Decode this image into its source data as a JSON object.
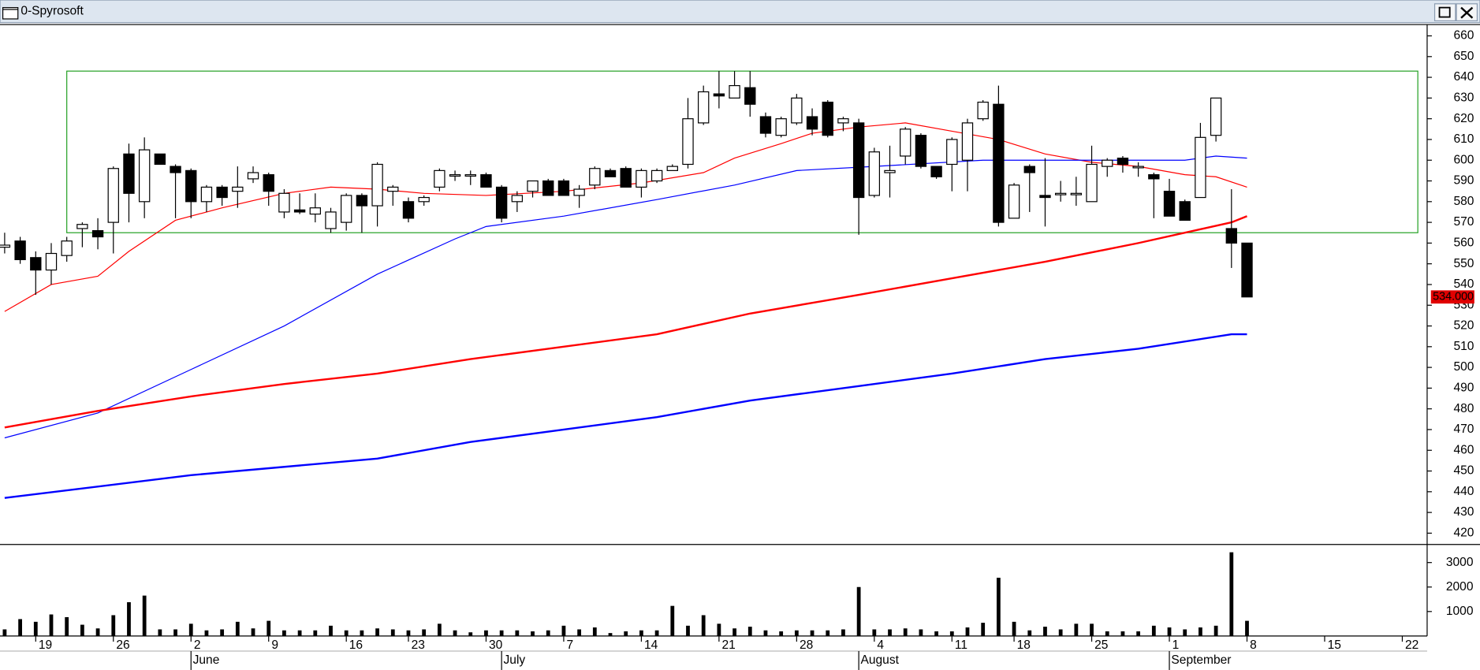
{
  "chart_data": {
    "type": "candlestick",
    "title": "0-Spyrosoft",
    "open": [
      558,
      561,
      553,
      547,
      554,
      567,
      566,
      570,
      603,
      580,
      603,
      597,
      595,
      580,
      587,
      585,
      591,
      593,
      575,
      576,
      574,
      567,
      570,
      583,
      578,
      585,
      580,
      580,
      587,
      593,
      593,
      593,
      587,
      580,
      585,
      590,
      590,
      583,
      588,
      595,
      596,
      587,
      590,
      595,
      598,
      618,
      632,
      630,
      635,
      621,
      612,
      618,
      621,
      628,
      618,
      618,
      583,
      594,
      602,
      612,
      597,
      598,
      600,
      620,
      627,
      572,
      597,
      583,
      584,
      584,
      580,
      597,
      601,
      597,
      593,
      585,
      580,
      582,
      612,
      567,
      560
    ],
    "high": [
      565,
      563,
      556,
      560,
      563,
      570,
      572,
      597,
      608,
      611,
      603,
      598,
      596,
      588,
      588,
      597,
      597,
      594,
      586,
      584,
      584,
      577,
      584,
      584,
      599,
      588,
      582,
      583,
      596,
      595,
      595,
      594,
      588,
      585,
      590,
      591,
      591,
      588,
      597,
      596,
      597,
      596,
      596,
      598,
      630,
      636,
      643,
      643,
      643,
      623,
      621,
      632,
      625,
      629,
      621,
      620,
      606,
      607,
      616,
      613,
      597,
      611,
      620,
      629,
      636,
      589,
      598,
      601,
      590,
      592,
      607,
      601,
      602,
      599,
      594,
      591,
      581,
      618,
      630,
      586,
      560
    ],
    "low": [
      555,
      550,
      535,
      540,
      551,
      558,
      557,
      555,
      570,
      572,
      598,
      572,
      572,
      575,
      578,
      577,
      589,
      578,
      572,
      574,
      570,
      565,
      566,
      565,
      568,
      578,
      570,
      578,
      585,
      590,
      588,
      587,
      570,
      575,
      582,
      583,
      583,
      577,
      586,
      592,
      587,
      582,
      589,
      595,
      596,
      617,
      625,
      630,
      621,
      611,
      611,
      617,
      612,
      611,
      614,
      564,
      582,
      582,
      598,
      596,
      591,
      585,
      585,
      619,
      568,
      572,
      575,
      568,
      580,
      578,
      580,
      592,
      594,
      592,
      572,
      573,
      571,
      582,
      609,
      548,
      534
    ],
    "close": [
      559,
      552,
      547,
      555,
      561,
      569,
      563,
      596,
      584,
      605,
      598,
      594,
      580,
      587,
      582,
      587,
      594,
      585,
      584,
      575,
      577,
      575,
      583,
      578,
      598,
      587,
      572,
      582,
      595,
      593,
      593,
      587,
      572,
      583,
      590,
      583,
      583,
      586,
      596,
      592,
      587,
      595,
      595,
      597,
      620,
      633,
      631,
      636,
      627,
      613,
      620,
      630,
      615,
      612,
      620,
      582,
      604,
      595,
      615,
      597,
      592,
      610,
      618,
      628,
      570,
      588,
      594,
      582,
      584,
      584,
      598,
      600,
      598,
      597,
      591,
      573,
      571,
      611,
      630,
      560,
      534
    ],
    "ylim": [
      415,
      665
    ],
    "yticks": [
      420,
      430,
      440,
      450,
      460,
      470,
      480,
      490,
      500,
      510,
      520,
      530,
      540,
      550,
      560,
      570,
      580,
      590,
      600,
      610,
      620,
      630,
      640,
      650,
      660
    ],
    "xlim": [
      -0.3,
      91.6
    ],
    "xticks": [
      {
        "value": 2,
        "label": "19"
      },
      {
        "value": 7,
        "label": "26"
      },
      {
        "value": 12,
        "label": "2"
      },
      {
        "value": 17,
        "label": "9"
      },
      {
        "value": 22,
        "label": "16"
      },
      {
        "value": 26,
        "label": "23"
      },
      {
        "value": 31,
        "label": "30"
      },
      {
        "value": 36,
        "label": "7"
      },
      {
        "value": 41,
        "label": "14"
      },
      {
        "value": 46,
        "label": "21"
      },
      {
        "value": 51,
        "label": "28"
      },
      {
        "value": 56,
        "label": "4"
      },
      {
        "value": 61,
        "label": "11"
      },
      {
        "value": 65,
        "label": "18"
      },
      {
        "value": 70,
        "label": "25"
      },
      {
        "value": 75,
        "label": "1"
      },
      {
        "value": 80,
        "label": "8"
      },
      {
        "value": 85,
        "label": "15"
      },
      {
        "value": 90,
        "label": "22"
      }
    ],
    "month_ticks": [
      {
        "value": 12,
        "label": "June"
      },
      {
        "value": 32,
        "label": "July"
      },
      {
        "value": 55,
        "label": "August"
      },
      {
        "value": 75,
        "label": "September"
      }
    ],
    "moving_averages": [
      {
        "color": "#ff0000",
        "width": 1,
        "x": [
          0,
          3,
          6,
          8,
          11,
          14,
          18,
          21,
          24,
          27,
          31,
          36,
          41,
          45,
          47,
          50,
          52,
          55,
          58,
          61,
          64,
          67,
          70,
          73,
          76,
          78,
          80
        ],
        "values": [
          527,
          540,
          544,
          556,
          571,
          577,
          584,
          587,
          586,
          584,
          583,
          585,
          589,
          594,
          601,
          608,
          613,
          616,
          618,
          614,
          610,
          603,
          599,
          597,
          593,
          592,
          587
        ]
      },
      {
        "color": "#0000ff",
        "width": 1,
        "x": [
          0,
          6,
          12,
          18,
          24,
          29,
          31,
          36,
          42,
          47,
          51,
          56,
          63,
          70,
          76,
          78,
          80
        ],
        "values": [
          466,
          478,
          499,
          520,
          545,
          562,
          568,
          573,
          581,
          588,
          595,
          597,
          600,
          600,
          600,
          602,
          601
        ]
      },
      {
        "color": "#ff0000",
        "width": 2,
        "x": [
          0,
          6,
          12,
          18,
          24,
          30,
          36,
          42,
          48,
          55,
          61,
          67,
          73,
          79,
          80
        ],
        "values": [
          471,
          479,
          486,
          492,
          497,
          504,
          510,
          516,
          526,
          535,
          543,
          551,
          560,
          570,
          573
        ]
      },
      {
        "color": "#0000ff",
        "width": 2,
        "x": [
          0,
          12,
          24,
          30,
          42,
          48,
          55,
          61,
          67,
          73,
          79,
          80
        ],
        "values": [
          437,
          448,
          456,
          464,
          476,
          484,
          491,
          497,
          504,
          509,
          516,
          516
        ]
      }
    ],
    "range_box": {
      "x": [
        4,
        91
      ],
      "y": [
        565,
        643
      ],
      "color": "#22a022"
    },
    "last_price": {
      "value": 534,
      "label": "534.000"
    },
    "volume": {
      "values": [
        270,
        690,
        580,
        880,
        770,
        460,
        310,
        850,
        1380,
        1650,
        270,
        270,
        500,
        230,
        270,
        580,
        310,
        620,
        230,
        230,
        230,
        420,
        230,
        230,
        310,
        270,
        230,
        270,
        500,
        230,
        150,
        230,
        230,
        230,
        190,
        230,
        420,
        270,
        350,
        120,
        190,
        230,
        230,
        1230,
        420,
        850,
        500,
        310,
        380,
        230,
        190,
        230,
        230,
        230,
        270,
        2000,
        270,
        270,
        310,
        270,
        190,
        190,
        350,
        540,
        2380,
        580,
        230,
        380,
        270,
        500,
        500,
        190,
        190,
        190,
        420,
        350,
        270,
        350,
        420,
        3420,
        620
      ],
      "ylim": [
        0,
        3700
      ],
      "yticks": [
        1000,
        2000,
        3000
      ],
      "color": "#000000"
    }
  }
}
